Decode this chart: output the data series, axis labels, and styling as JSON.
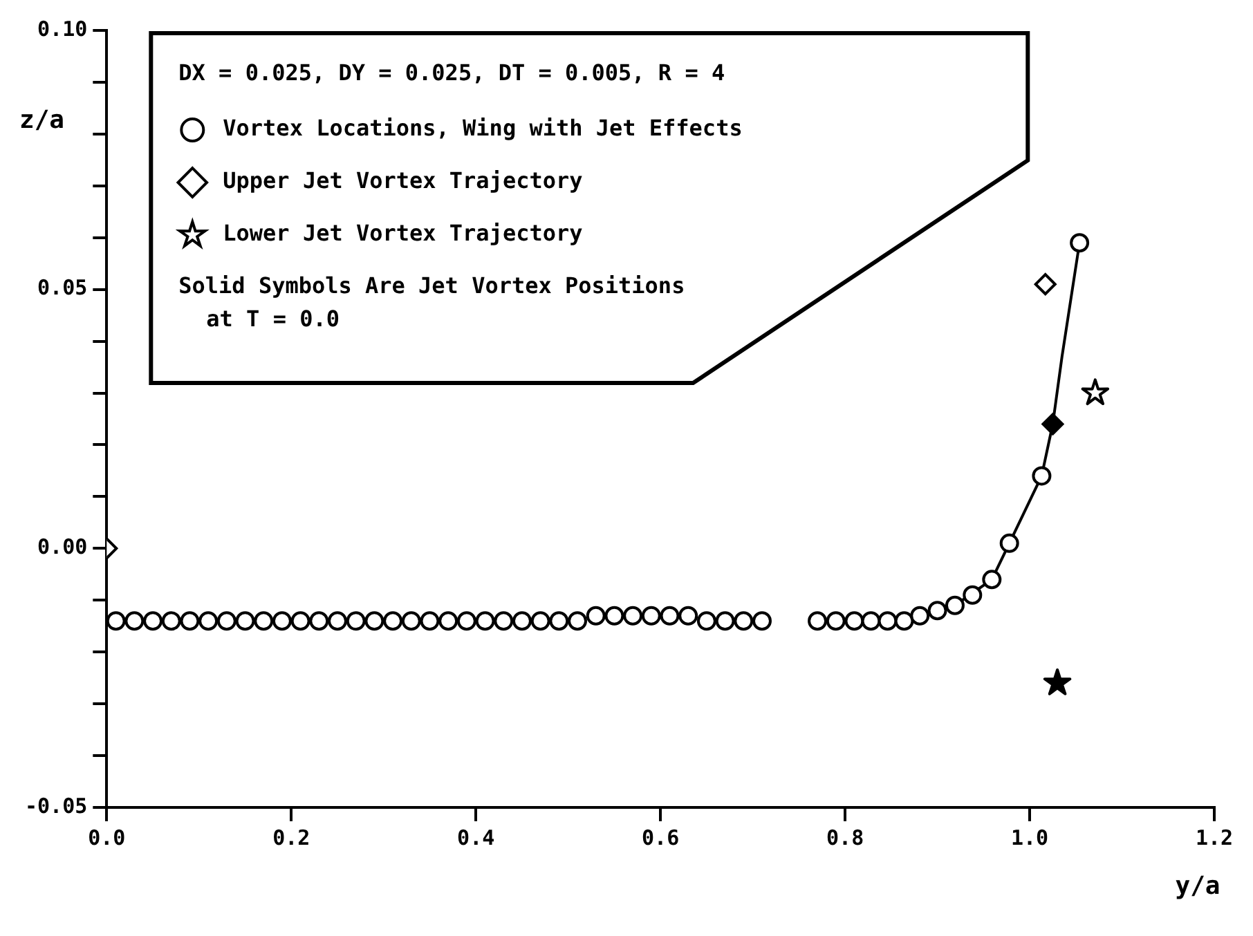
{
  "chart_data": {
    "type": "scatter",
    "xlabel": "y/a",
    "ylabel": "z/a",
    "xlim": [
      0,
      1.2
    ],
    "ylim": [
      -0.05,
      0.1
    ],
    "xticks": [
      {
        "value": 0,
        "label": "0.0"
      },
      {
        "value": 0.2,
        "label": "0.2"
      },
      {
        "value": 0.4,
        "label": "0.4"
      },
      {
        "value": 0.6,
        "label": "0.6"
      },
      {
        "value": 0.8,
        "label": "0.8"
      },
      {
        "value": 1,
        "label": "1.0"
      },
      {
        "value": 1.2,
        "label": "1.2"
      }
    ],
    "yticks": [
      {
        "value": -0.05,
        "label": "-0.05"
      },
      {
        "value": -0.04,
        "label": null
      },
      {
        "value": -0.03,
        "label": null
      },
      {
        "value": -0.02,
        "label": null
      },
      {
        "value": -0.01,
        "label": null
      },
      {
        "value": 0,
        "label": "0.00"
      },
      {
        "value": 0.01,
        "label": null
      },
      {
        "value": 0.02,
        "label": null
      },
      {
        "value": 0.03,
        "label": null
      },
      {
        "value": 0.04,
        "label": null
      },
      {
        "value": 0.05,
        "label": "0.05"
      },
      {
        "value": 0.06,
        "label": null
      },
      {
        "value": 0.07,
        "label": null
      },
      {
        "value": 0.08,
        "label": null
      },
      {
        "value": 0.09,
        "label": null
      },
      {
        "value": 0.1,
        "label": "0.10"
      }
    ],
    "grid": false,
    "legend": "top left",
    "annotations": [
      "DX = 0.025, DY = 0.025, DT = 0.005, R = 4",
      "Solid Symbols Are Jet Vortex Positions at T = 0.0"
    ],
    "series": [
      {
        "type": "line",
        "color": "#000000",
        "marker": "none",
        "line_style": "solid",
        "x": [
          0.83,
          0.881,
          0.919,
          0.959,
          0.978,
          1.013,
          1.025,
          1.035,
          1.054
        ],
        "values": [
          -0.014,
          -0.013,
          -0.011,
          -0.006,
          0.001,
          0.014,
          0.024,
          0.037,
          0.059
        ]
      },
      {
        "name": "Vortex Locations, Wing with Jet Effects",
        "color": "#000000",
        "marker": "circle",
        "x": [
          0.01,
          0.03,
          0.05,
          0.07,
          0.09,
          0.11,
          0.13,
          0.15,
          0.17,
          0.19,
          0.21,
          0.23,
          0.25,
          0.27,
          0.29,
          0.31,
          0.33,
          0.35,
          0.37,
          0.39,
          0.41,
          0.43,
          0.45,
          0.47,
          0.49,
          0.51,
          0.53,
          0.55,
          0.57,
          0.59,
          0.61,
          0.63,
          0.65,
          0.67,
          0.69,
          0.71,
          0.77,
          0.79,
          0.81,
          0.828,
          0.846,
          0.864,
          0.881,
          0.9,
          0.919,
          0.938,
          0.959,
          0.978,
          1.013,
          1.054
        ],
        "values": [
          -0.014,
          -0.014,
          -0.014,
          -0.014,
          -0.014,
          -0.014,
          -0.014,
          -0.014,
          -0.014,
          -0.014,
          -0.014,
          -0.014,
          -0.014,
          -0.014,
          -0.014,
          -0.014,
          -0.014,
          -0.014,
          -0.014,
          -0.014,
          -0.014,
          -0.014,
          -0.014,
          -0.014,
          -0.014,
          -0.014,
          -0.013,
          -0.013,
          -0.013,
          -0.013,
          -0.013,
          -0.013,
          -0.014,
          -0.014,
          -0.014,
          -0.014,
          -0.014,
          -0.014,
          -0.014,
          -0.014,
          -0.014,
          -0.014,
          -0.013,
          -0.012,
          -0.011,
          -0.009,
          -0.006,
          0.001,
          0.014,
          0.059
        ]
      },
      {
        "name": "Upper Jet Vortex Trajectory",
        "color": "#000000",
        "marker": "diamond",
        "x": [
          0,
          1.017
        ],
        "values": [
          0,
          0.051
        ]
      },
      {
        "name": "Lower Jet Vortex Trajectory",
        "color": "#000000",
        "marker": "star",
        "x": [
          1.071
        ],
        "values": [
          0.03
        ]
      },
      {
        "color": "#000000",
        "marker": "diamond",
        "x": [
          1.025
        ],
        "values": [
          0.024
        ]
      },
      {
        "color": "#000000",
        "marker": "star",
        "x": [
          1.03
        ],
        "values": [
          -0.026
        ]
      }
    ]
  }
}
